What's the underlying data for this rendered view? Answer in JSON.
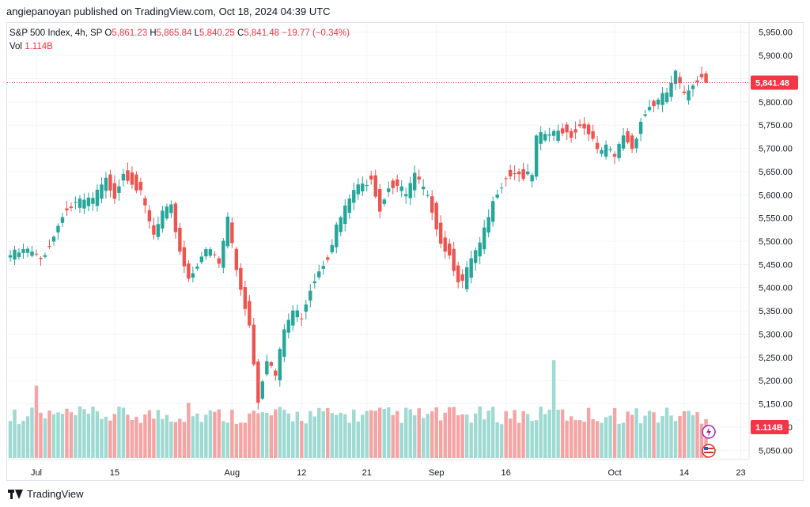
{
  "header": {
    "publisher_line": "angiepanoyan published on TradingView.com, Oct 18, 2024 04:39 UTC"
  },
  "legend": {
    "symbol": "S&P 500 Index, 4h, SP",
    "open_label": "O",
    "open": "5,861.23",
    "high_label": "H",
    "high": "5,865.84",
    "low_label": "L",
    "low": "5,840.25",
    "close_label": "C",
    "close": "5,841.48",
    "change": "−19.77 (−0.34%)",
    "vol_label": "Vol",
    "vol": "1.114B"
  },
  "footer": {
    "brand": "TradingView"
  },
  "colors": {
    "up": "#26a69a",
    "down": "#ef5350",
    "vol_up": "#9ed9d2",
    "vol_down": "#f5a3a3",
    "price_tag": "#f23645"
  },
  "icons": [
    "lightning-icon",
    "us-flag-icon"
  ],
  "chart_data": {
    "type": "candlestick",
    "title": "S&P 500 Index, 4h, SP",
    "ylim": [
      5030,
      5970
    ],
    "y_ticks": [
      "5,050.00",
      "5,100.00",
      "5,150.00",
      "5,200.00",
      "5,250.00",
      "5,300.00",
      "5,350.00",
      "5,400.00",
      "5,450.00",
      "5,500.00",
      "5,550.00",
      "5,600.00",
      "5,650.00",
      "5,700.00",
      "5,750.00",
      "5,800.00",
      "5,850.00",
      "5,900.00",
      "5,950.00"
    ],
    "x_ticks": [
      "Jul",
      "15",
      "Aug",
      "12",
      "21",
      "Sep",
      "16",
      "Oct",
      "14",
      "23"
    ],
    "last_price_label": "5,841.48",
    "last_volume_label": "1.114B",
    "grid": true,
    "anchors": [
      {
        "i": 0,
        "v": 5470
      },
      {
        "i": 4,
        "v": 5480
      },
      {
        "i": 7,
        "v": 5460
      },
      {
        "i": 10,
        "v": 5510
      },
      {
        "i": 12,
        "v": 5560
      },
      {
        "i": 15,
        "v": 5580
      },
      {
        "i": 19,
        "v": 5590
      },
      {
        "i": 22,
        "v": 5630
      },
      {
        "i": 24,
        "v": 5600
      },
      {
        "i": 26,
        "v": 5650
      },
      {
        "i": 28,
        "v": 5630
      },
      {
        "i": 30,
        "v": 5600
      },
      {
        "i": 33,
        "v": 5510
      },
      {
        "i": 35,
        "v": 5560
      },
      {
        "i": 37,
        "v": 5570
      },
      {
        "i": 39,
        "v": 5480
      },
      {
        "i": 41,
        "v": 5420
      },
      {
        "i": 44,
        "v": 5470
      },
      {
        "i": 46,
        "v": 5480
      },
      {
        "i": 48,
        "v": 5450
      },
      {
        "i": 50,
        "v": 5550
      },
      {
        "i": 52,
        "v": 5440
      },
      {
        "i": 54,
        "v": 5360
      },
      {
        "i": 55,
        "v": 5320
      },
      {
        "i": 57,
        "v": 5160
      },
      {
        "i": 59,
        "v": 5250
      },
      {
        "i": 61,
        "v": 5210
      },
      {
        "i": 63,
        "v": 5310
      },
      {
        "i": 65,
        "v": 5350
      },
      {
        "i": 67,
        "v": 5340
      },
      {
        "i": 69,
        "v": 5400
      },
      {
        "i": 71,
        "v": 5440
      },
      {
        "i": 73,
        "v": 5470
      },
      {
        "i": 75,
        "v": 5530
      },
      {
        "i": 77,
        "v": 5570
      },
      {
        "i": 79,
        "v": 5610
      },
      {
        "i": 81,
        "v": 5620
      },
      {
        "i": 83,
        "v": 5640
      },
      {
        "i": 85,
        "v": 5570
      },
      {
        "i": 87,
        "v": 5620
      },
      {
        "i": 89,
        "v": 5620
      },
      {
        "i": 91,
        "v": 5600
      },
      {
        "i": 93,
        "v": 5640
      },
      {
        "i": 95,
        "v": 5610
      },
      {
        "i": 97,
        "v": 5570
      },
      {
        "i": 99,
        "v": 5500
      },
      {
        "i": 101,
        "v": 5470
      },
      {
        "i": 103,
        "v": 5420
      },
      {
        "i": 104,
        "v": 5410
      },
      {
        "i": 106,
        "v": 5460
      },
      {
        "i": 108,
        "v": 5490
      },
      {
        "i": 110,
        "v": 5550
      },
      {
        "i": 112,
        "v": 5610
      },
      {
        "i": 114,
        "v": 5640
      },
      {
        "i": 116,
        "v": 5650
      },
      {
        "i": 118,
        "v": 5640
      },
      {
        "i": 120,
        "v": 5640
      },
      {
        "i": 121,
        "v": 5720
      },
      {
        "i": 123,
        "v": 5730
      },
      {
        "i": 125,
        "v": 5730
      },
      {
        "i": 127,
        "v": 5740
      },
      {
        "i": 129,
        "v": 5730
      },
      {
        "i": 131,
        "v": 5750
      },
      {
        "i": 133,
        "v": 5740
      },
      {
        "i": 135,
        "v": 5690
      },
      {
        "i": 137,
        "v": 5700
      },
      {
        "i": 139,
        "v": 5680
      },
      {
        "i": 141,
        "v": 5730
      },
      {
        "i": 143,
        "v": 5700
      },
      {
        "i": 145,
        "v": 5760
      },
      {
        "i": 147,
        "v": 5790
      },
      {
        "i": 149,
        "v": 5800
      },
      {
        "i": 151,
        "v": 5820
      },
      {
        "i": 153,
        "v": 5860
      },
      {
        "i": 155,
        "v": 5810
      },
      {
        "i": 157,
        "v": 5840
      },
      {
        "i": 159,
        "v": 5860
      },
      {
        "i": 160,
        "v": 5841
      }
    ],
    "volume_spikes": [
      {
        "i": 6,
        "v": 2.03
      },
      {
        "i": 125,
        "v": 2.75
      },
      {
        "i": 41,
        "v": 1.55
      }
    ]
  }
}
